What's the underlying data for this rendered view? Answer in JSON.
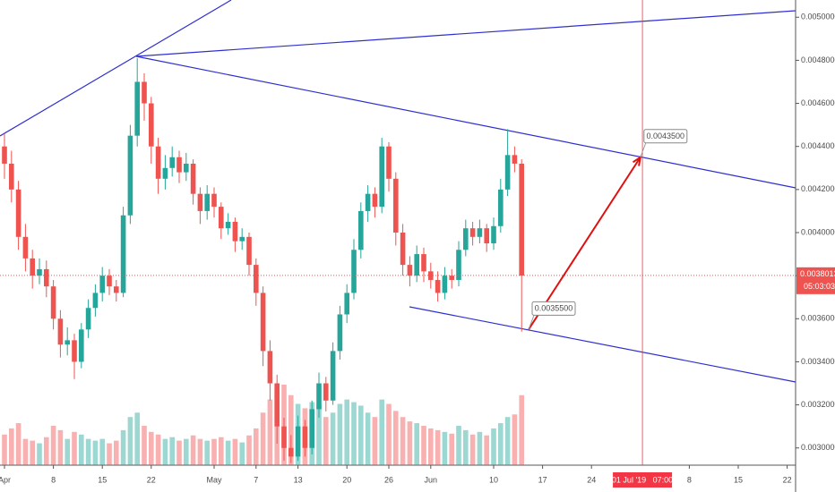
{
  "chart_data": {
    "type": "candlestick",
    "x": [
      "2019-04-01",
      "2019-04-02",
      "2019-04-03",
      "2019-04-04",
      "2019-04-05",
      "2019-04-06",
      "2019-04-07",
      "2019-04-08",
      "2019-04-09",
      "2019-04-10",
      "2019-04-11",
      "2019-04-12",
      "2019-04-13",
      "2019-04-14",
      "2019-04-15",
      "2019-04-16",
      "2019-04-17",
      "2019-04-18",
      "2019-04-19",
      "2019-04-20",
      "2019-04-21",
      "2019-04-22",
      "2019-04-23",
      "2019-04-24",
      "2019-04-25",
      "2019-04-26",
      "2019-04-27",
      "2019-04-28",
      "2019-04-29",
      "2019-04-30",
      "2019-05-01",
      "2019-05-02",
      "2019-05-03",
      "2019-05-04",
      "2019-05-05",
      "2019-05-06",
      "2019-05-07",
      "2019-05-08",
      "2019-05-09",
      "2019-05-10",
      "2019-05-11",
      "2019-05-12",
      "2019-05-13",
      "2019-05-14",
      "2019-05-15",
      "2019-05-16",
      "2019-05-17",
      "2019-05-18",
      "2019-05-19",
      "2019-05-20",
      "2019-05-21",
      "2019-05-22",
      "2019-05-23",
      "2019-05-24",
      "2019-05-25",
      "2019-05-26",
      "2019-05-27",
      "2019-05-28",
      "2019-05-29",
      "2019-05-30",
      "2019-05-31",
      "2019-06-01",
      "2019-06-02",
      "2019-06-03",
      "2019-06-04",
      "2019-06-05",
      "2019-06-06",
      "2019-06-07",
      "2019-06-08",
      "2019-06-09",
      "2019-06-10",
      "2019-06-11",
      "2019-06-12",
      "2019-06-13",
      "2019-06-14"
    ],
    "open": [
      0.0044,
      0.00432,
      0.0042,
      0.00398,
      0.00388,
      0.0038,
      0.00383,
      0.00375,
      0.0036,
      0.00348,
      0.0035,
      0.0034,
      0.00355,
      0.00365,
      0.00372,
      0.0038,
      0.00375,
      0.00372,
      0.00408,
      0.00445,
      0.0047,
      0.0046,
      0.0044,
      0.00425,
      0.0043,
      0.00435,
      0.00428,
      0.00432,
      0.00418,
      0.0041,
      0.00418,
      0.00412,
      0.00402,
      0.00405,
      0.00396,
      0.00398,
      0.00385,
      0.00372,
      0.00345,
      0.0033,
      0.0031,
      0.003,
      0.00296,
      0.0031,
      0.003,
      0.00318,
      0.0033,
      0.00322,
      0.00345,
      0.00362,
      0.00372,
      0.00392,
      0.0041,
      0.00418,
      0.00412,
      0.0044,
      0.00425,
      0.004,
      0.00385,
      0.0038,
      0.0039,
      0.00382,
      0.00378,
      0.00372,
      0.0038,
      0.00378,
      0.00392,
      0.00402,
      0.00398,
      0.00402,
      0.00395,
      0.00403,
      0.0042,
      0.00436,
      0.00432
    ],
    "high": [
      0.00446,
      0.00438,
      0.00424,
      0.00404,
      0.00392,
      0.00388,
      0.00387,
      0.00378,
      0.00364,
      0.00356,
      0.00353,
      0.00358,
      0.00369,
      0.00376,
      0.00384,
      0.00383,
      0.00378,
      0.00412,
      0.0045,
      0.00481,
      0.00474,
      0.00463,
      0.00444,
      0.00436,
      0.0044,
      0.00438,
      0.00437,
      0.00434,
      0.00421,
      0.00422,
      0.00421,
      0.00414,
      0.00409,
      0.00407,
      0.00402,
      0.004,
      0.00388,
      0.00375,
      0.0035,
      0.00334,
      0.00314,
      0.00306,
      0.00315,
      0.00313,
      0.00322,
      0.00335,
      0.00333,
      0.00349,
      0.00366,
      0.00376,
      0.00397,
      0.00414,
      0.00422,
      0.00421,
      0.00444,
      0.00442,
      0.00428,
      0.00404,
      0.00389,
      0.00394,
      0.00393,
      0.00386,
      0.00382,
      0.00384,
      0.00383,
      0.00396,
      0.00406,
      0.00405,
      0.00406,
      0.00404,
      0.00407,
      0.00425,
      0.00448,
      0.0044,
      0.00434
    ],
    "low": [
      0.00425,
      0.00414,
      0.00392,
      0.00382,
      0.00374,
      0.00376,
      0.0037,
      0.00355,
      0.00342,
      0.00343,
      0.00332,
      0.00337,
      0.00351,
      0.00361,
      0.00368,
      0.00371,
      0.00368,
      0.0037,
      0.00404,
      0.0044,
      0.00452,
      0.00432,
      0.00418,
      0.0042,
      0.00426,
      0.00423,
      0.00424,
      0.00413,
      0.00404,
      0.00406,
      0.00407,
      0.00397,
      0.00399,
      0.00391,
      0.00392,
      0.0038,
      0.00366,
      0.00338,
      0.00322,
      0.00302,
      0.00294,
      0.00293,
      0.00294,
      0.00296,
      0.00297,
      0.00314,
      0.00317,
      0.0032,
      0.00341,
      0.00358,
      0.00369,
      0.00388,
      0.00405,
      0.00407,
      0.00409,
      0.00419,
      0.00394,
      0.0038,
      0.00375,
      0.00377,
      0.00377,
      0.00374,
      0.00368,
      0.00369,
      0.00374,
      0.00375,
      0.00389,
      0.00394,
      0.00395,
      0.00391,
      0.00392,
      0.004,
      0.00417,
      0.00428,
      0.00354
    ],
    "close": [
      0.00432,
      0.0042,
      0.00398,
      0.00388,
      0.0038,
      0.00383,
      0.00375,
      0.0036,
      0.00348,
      0.0035,
      0.0034,
      0.00355,
      0.00365,
      0.00372,
      0.0038,
      0.00375,
      0.00372,
      0.00408,
      0.00445,
      0.0047,
      0.0046,
      0.0044,
      0.00425,
      0.0043,
      0.00435,
      0.00428,
      0.00432,
      0.00418,
      0.0041,
      0.00418,
      0.00412,
      0.00402,
      0.00405,
      0.00396,
      0.00398,
      0.00385,
      0.00372,
      0.00345,
      0.0033,
      0.0031,
      0.003,
      0.00296,
      0.0031,
      0.003,
      0.00318,
      0.0033,
      0.00322,
      0.00345,
      0.00362,
      0.00372,
      0.00392,
      0.0041,
      0.00418,
      0.00412,
      0.0044,
      0.00425,
      0.004,
      0.00385,
      0.0038,
      0.0039,
      0.00382,
      0.00378,
      0.00372,
      0.0038,
      0.00378,
      0.00392,
      0.00402,
      0.00398,
      0.00402,
      0.00395,
      0.00403,
      0.0042,
      0.00436,
      0.00432,
      0.0038
    ],
    "volume": [
      35,
      42,
      48,
      30,
      28,
      25,
      32,
      45,
      40,
      30,
      38,
      35,
      30,
      28,
      30,
      25,
      28,
      40,
      55,
      60,
      45,
      38,
      35,
      30,
      32,
      28,
      30,
      34,
      30,
      28,
      30,
      32,
      28,
      30,
      26,
      34,
      42,
      60,
      75,
      88,
      92,
      80,
      70,
      65,
      72,
      68,
      55,
      60,
      70,
      75,
      72,
      68,
      60,
      55,
      75,
      70,
      62,
      55,
      50,
      48,
      45,
      42,
      40,
      38,
      36,
      45,
      40,
      35,
      38,
      34,
      42,
      48,
      55,
      58,
      80
    ],
    "up_color": "#26a69a",
    "down_color": "#ef5350",
    "ylim": [
      0.00292,
      0.00508
    ],
    "yticks": [
      {
        "value": 0.005,
        "label": "0.0050000"
      },
      {
        "value": 0.0048,
        "label": "0.0048000"
      },
      {
        "value": 0.0046,
        "label": "0.0046000"
      },
      {
        "value": 0.0044,
        "label": "0.0044000"
      },
      {
        "value": 0.0042,
        "label": "0.0042000"
      },
      {
        "value": 0.004,
        "label": "0.0040000"
      },
      {
        "value": 0.0038,
        "label": "0.0038000"
      },
      {
        "value": 0.0036,
        "label": "0.0036000"
      },
      {
        "value": 0.0034,
        "label": "0.0034000"
      },
      {
        "value": 0.0032,
        "label": "0.0032000"
      },
      {
        "value": 0.003,
        "label": "0.0030000"
      }
    ],
    "xticks": [
      {
        "value": "2019-04-01",
        "label": "Apr"
      },
      {
        "value": "2019-04-08",
        "label": "8"
      },
      {
        "value": "2019-04-15",
        "label": "15"
      },
      {
        "value": "2019-04-22",
        "label": "22"
      },
      {
        "value": "2019-05-01",
        "label": "May"
      },
      {
        "value": "2019-05-07",
        "label": "7"
      },
      {
        "value": "2019-05-13",
        "label": "13"
      },
      {
        "value": "2019-05-20",
        "label": "20"
      },
      {
        "value": "2019-05-26",
        "label": "26"
      },
      {
        "value": "2019-06-01",
        "label": "Jun"
      },
      {
        "value": "2019-06-10",
        "label": "10"
      },
      {
        "value": "2019-06-17",
        "label": "17"
      },
      {
        "value": "2019-06-24",
        "label": "24"
      },
      {
        "value": "2019-07-08",
        "label": "8"
      },
      {
        "value": "2019-07-15",
        "label": "15"
      },
      {
        "value": "2019-07-22",
        "label": "22"
      }
    ],
    "last_price": {
      "value": 0.0038013,
      "label": "0.0038013",
      "countdown": "05:03:03"
    },
    "crosshair": {
      "value": "2019-07-01T07:00",
      "label": "01 Jul '19   07:00"
    },
    "annotations": [
      {
        "x": "2019-06-15",
        "value": 0.00355,
        "label": "0.0035500"
      },
      {
        "x": "2019-07-01",
        "value": 0.00435,
        "label": "0.0043500"
      }
    ]
  }
}
